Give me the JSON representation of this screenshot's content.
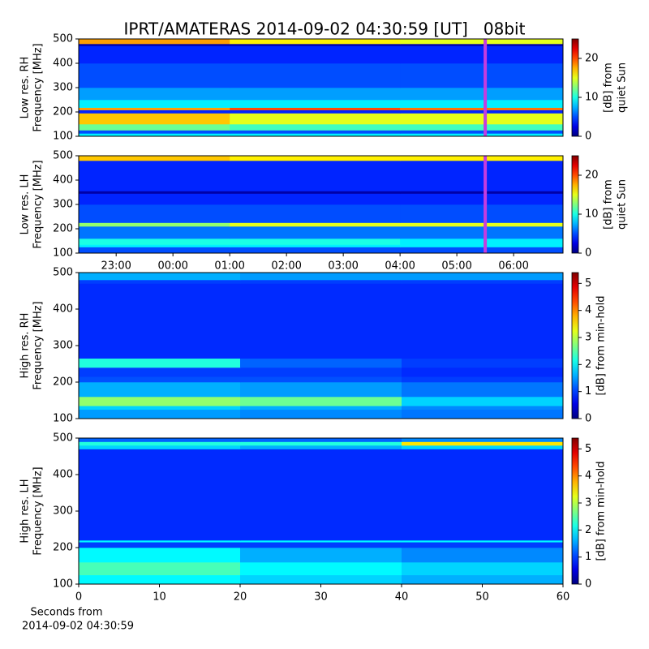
{
  "chart_data": [
    {
      "type": "heatmap",
      "title": "IPRT/AMATERAS 2014-09-02 04:30:59 [UT]   08bit",
      "ylabel": [
        "Low res. RH",
        "Frequency [MHz]"
      ],
      "xlim": [
        22.34,
        30.87
      ],
      "ylim": [
        100,
        500
      ],
      "yticks": [
        100,
        200,
        300,
        400,
        500
      ],
      "cmap": "jet",
      "clim": [
        0,
        25
      ],
      "colorbar": {
        "label": [
          "[dB] from",
          "quiet Sun"
        ],
        "ticks": [
          0,
          10,
          20
        ]
      },
      "marker": {
        "x": 29.5,
        "color": "#c43ce0"
      },
      "x_edges": [
        22.34,
        25,
        28,
        30.87
      ],
      "y_edges": [
        100,
        112,
        125,
        150,
        195,
        208,
        218,
        250,
        300,
        400,
        472,
        480,
        500
      ],
      "values": [
        [
          9,
          9,
          9
        ],
        [
          5,
          5,
          5
        ],
        [
          12,
          11,
          11
        ],
        [
          17,
          15,
          15
        ],
        [
          4,
          4,
          4
        ],
        [
          18,
          20,
          19
        ],
        [
          9,
          9,
          9
        ],
        [
          7,
          7,
          7
        ],
        [
          5,
          5,
          5
        ],
        [
          4,
          4,
          4
        ],
        [
          1,
          1,
          1
        ],
        [
          18,
          16,
          15
        ]
      ]
    },
    {
      "type": "heatmap",
      "ylabel": [
        "Low res. LH",
        "Frequency [MHz]"
      ],
      "xlim": [
        22.34,
        30.87
      ],
      "ylim": [
        100,
        500
      ],
      "yticks": [
        100,
        200,
        300,
        400,
        500
      ],
      "xticks": [
        {
          "value": 23,
          "label": "23:00"
        },
        {
          "value": 24,
          "label": "00:00"
        },
        {
          "value": 25,
          "label": "01:00"
        },
        {
          "value": 26,
          "label": "02:00"
        },
        {
          "value": 27,
          "label": "03:00"
        },
        {
          "value": 28,
          "label": "04:00"
        },
        {
          "value": 29,
          "label": "05:00"
        },
        {
          "value": 30,
          "label": "06:00"
        }
      ],
      "cmap": "jet",
      "clim": [
        0,
        25
      ],
      "colorbar": {
        "label": [
          "[dB] from",
          "quiet Sun"
        ],
        "ticks": [
          0,
          10,
          20
        ]
      },
      "marker": {
        "x": 29.5,
        "color": "#c43ce0"
      },
      "x_edges": [
        22.34,
        25,
        28,
        30.87
      ],
      "y_edges": [
        100,
        125,
        135,
        160,
        210,
        225,
        300,
        345,
        355,
        480,
        500
      ],
      "values": [
        [
          5,
          5,
          5
        ],
        [
          9,
          9,
          9
        ],
        [
          10,
          10,
          9
        ],
        [
          6,
          6,
          6
        ],
        [
          13,
          15,
          15
        ],
        [
          5,
          5,
          5
        ],
        [
          4,
          4,
          4
        ],
        [
          1,
          1,
          1
        ],
        [
          4,
          4,
          4
        ],
        [
          17,
          16,
          16
        ]
      ]
    },
    {
      "type": "heatmap",
      "ylabel": [
        "High res. RH",
        "Frequency [MHz]"
      ],
      "xlim": [
        0,
        60
      ],
      "ylim": [
        100,
        500
      ],
      "yticks": [
        100,
        200,
        300,
        400,
        500
      ],
      "cmap": "jet",
      "clim": [
        0,
        5.4
      ],
      "colorbar": {
        "label": [
          "[dB] from min-hold"
        ],
        "ticks": [
          0,
          1,
          2,
          3,
          4,
          5
        ]
      },
      "x_edges": [
        0,
        20,
        40,
        60
      ],
      "y_edges": [
        100,
        125,
        135,
        160,
        200,
        215,
        240,
        265,
        470,
        480,
        500
      ],
      "values": [
        [
          1.5,
          1.4,
          1.3
        ],
        [
          1.8,
          1.6,
          1.4
        ],
        [
          2.8,
          2.6,
          1.8
        ],
        [
          1.6,
          1.5,
          1.3
        ],
        [
          1.1,
          1.1,
          1.0
        ],
        [
          1.0,
          1.0,
          0.9
        ],
        [
          2.2,
          1.2,
          1.0
        ],
        [
          0.9,
          0.9,
          0.9
        ],
        [
          1.0,
          1.0,
          1.0
        ],
        [
          1.6,
          1.5,
          1.5
        ]
      ]
    },
    {
      "type": "heatmap",
      "ylabel": [
        "High res. LH",
        "Frequency [MHz]"
      ],
      "xlabel": [
        "Seconds from",
        "2014-09-02 04:30:59"
      ],
      "xlim": [
        0,
        60
      ],
      "ylim": [
        100,
        500
      ],
      "yticks": [
        100,
        200,
        300,
        400,
        500
      ],
      "xticks": [
        0,
        10,
        20,
        30,
        40,
        50,
        60
      ],
      "cmap": "jet",
      "clim": [
        0,
        5.4
      ],
      "colorbar": {
        "label": [
          "[dB] from min-hold"
        ],
        "ticks": [
          0,
          1,
          2,
          3,
          4,
          5
        ]
      },
      "x_edges": [
        0,
        20,
        40,
        60
      ],
      "y_edges": [
        100,
        125,
        160,
        200,
        215,
        220,
        470,
        480,
        490,
        500
      ],
      "values": [
        [
          2.0,
          1.8,
          1.6
        ],
        [
          2.4,
          2.0,
          1.8
        ],
        [
          2.0,
          1.6,
          1.4
        ],
        [
          1.0,
          1.0,
          1.0
        ],
        [
          2.0,
          2.0,
          2.0
        ],
        [
          0.9,
          0.9,
          0.9
        ],
        [
          1.8,
          1.6,
          1.8
        ],
        [
          2.2,
          2.2,
          3.5
        ],
        [
          1.2,
          1.2,
          1.4
        ]
      ]
    }
  ]
}
